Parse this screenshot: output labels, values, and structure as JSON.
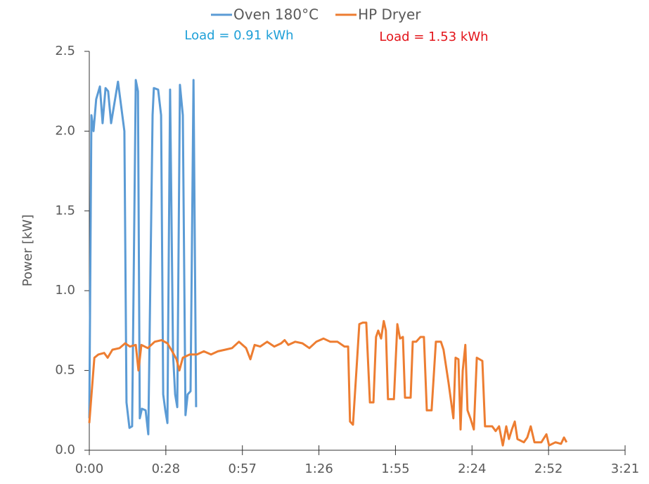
{
  "chart_data": {
    "type": "line",
    "y_label": "Power [kW]",
    "annotations": [
      {
        "text": "Load = 0.91 kWh",
        "color": "#1fa0d8"
      },
      {
        "text": "Load = 1.53 kWh",
        "color": "#e3151b"
      }
    ],
    "legend": "top",
    "xlim": [
      0,
      201.6
    ],
    "xticks": [
      {
        "value": 0,
        "label": "0:00"
      },
      {
        "value": 28.8,
        "label": "0:28"
      },
      {
        "value": 57.6,
        "label": "0:57"
      },
      {
        "value": 86.4,
        "label": "1:26"
      },
      {
        "value": 115.2,
        "label": "1:55"
      },
      {
        "value": 144,
        "label": "2:24"
      },
      {
        "value": 172.8,
        "label": "2:52"
      },
      {
        "value": 201.6,
        "label": "3:21"
      }
    ],
    "ylim": [
      0,
      2.5
    ],
    "yticks": [
      {
        "value": 0,
        "label": "0.0"
      },
      0.5,
      {
        "value": 1,
        "label": "1.0"
      },
      1.5,
      {
        "value": 2,
        "label": "2.0"
      },
      2.5
    ],
    "grid": false,
    "series": [
      {
        "name": "Oven 180°C",
        "color": "#5b9bd5",
        "x": [
          0,
          0.8,
          1.6,
          2.6,
          4.0,
          5.0,
          6.1,
          7.1,
          8.2,
          10.8,
          13.2,
          14.0,
          15.1,
          16.1,
          17.5,
          18.3,
          19.0,
          19.8,
          21.2,
          22.2,
          23.8,
          24.3,
          25.9,
          27.0,
          27.8,
          28.6,
          29.4,
          30.4,
          31.5,
          32.3,
          33.1,
          34.1,
          35.2,
          36.2,
          37.0,
          38.1,
          39.2,
          40.2
        ],
        "values": [
          0.2,
          2.1,
          2.0,
          2.2,
          2.28,
          2.05,
          2.27,
          2.25,
          2.05,
          2.31,
          2.0,
          0.3,
          0.14,
          0.15,
          2.32,
          2.25,
          0.2,
          0.26,
          0.25,
          0.1,
          2.1,
          2.27,
          2.26,
          2.1,
          0.35,
          0.25,
          0.17,
          2.26,
          0.6,
          0.35,
          0.27,
          2.29,
          2.1,
          0.22,
          0.35,
          0.37,
          2.32,
          0.27
        ]
      },
      {
        "name": "HP Dryer",
        "color": "#ed7d31",
        "x": [
          0,
          1.9,
          3.4,
          5.6,
          6.9,
          8.7,
          11.4,
          13.5,
          15.3,
          17.5,
          18.5,
          19.6,
          22.0,
          24.6,
          27.2,
          29.4,
          31.2,
          32.8,
          33.9,
          35.2,
          37.8,
          40.5,
          43.1,
          45.8,
          48.4,
          51.1,
          53.7,
          56.3,
          59.0,
          60.6,
          62.2,
          64.3,
          66.9,
          69.6,
          72.2,
          73.5,
          74.9,
          77.5,
          80.2,
          82.8,
          85.4,
          88.1,
          90.7,
          93.4,
          96.0,
          97.4,
          98.1,
          99.2,
          100.5,
          101.6,
          102.9,
          104.2,
          105.6,
          106.9,
          107.9,
          108.7,
          109.8,
          110.8,
          111.6,
          112.4,
          114.6,
          115.9,
          116.9,
          118.0,
          118.8,
          120.9,
          121.7,
          123.0,
          124.6,
          125.9,
          127.0,
          128.8,
          130.4,
          132.3,
          133.3,
          135.2,
          137.0,
          137.8,
          138.9,
          139.7,
          140.5,
          141.5,
          142.3,
          143.4,
          144.7,
          145.8,
          147.9,
          148.9,
          151.6,
          152.9,
          154.2,
          155.6,
          156.9,
          157.9,
          159.0,
          160.1,
          161.1,
          163.5,
          164.8,
          166.1,
          167.5,
          170.1,
          172.0,
          173.0,
          175.4,
          177.5,
          178.6,
          179.6
        ],
        "values": [
          0.17,
          0.58,
          0.6,
          0.61,
          0.58,
          0.63,
          0.64,
          0.67,
          0.65,
          0.66,
          0.5,
          0.66,
          0.64,
          0.68,
          0.69,
          0.67,
          0.62,
          0.57,
          0.5,
          0.58,
          0.6,
          0.6,
          0.62,
          0.6,
          0.62,
          0.63,
          0.64,
          0.68,
          0.64,
          0.57,
          0.66,
          0.65,
          0.68,
          0.65,
          0.67,
          0.69,
          0.66,
          0.68,
          0.67,
          0.64,
          0.68,
          0.7,
          0.68,
          0.68,
          0.65,
          0.65,
          0.18,
          0.16,
          0.5,
          0.79,
          0.8,
          0.8,
          0.3,
          0.3,
          0.71,
          0.75,
          0.7,
          0.81,
          0.75,
          0.32,
          0.32,
          0.79,
          0.7,
          0.71,
          0.33,
          0.33,
          0.68,
          0.68,
          0.71,
          0.71,
          0.25,
          0.25,
          0.68,
          0.68,
          0.63,
          0.42,
          0.2,
          0.58,
          0.57,
          0.13,
          0.5,
          0.66,
          0.25,
          0.2,
          0.13,
          0.58,
          0.56,
          0.15,
          0.15,
          0.12,
          0.15,
          0.03,
          0.15,
          0.07,
          0.13,
          0.18,
          0.07,
          0.05,
          0.08,
          0.15,
          0.05,
          0.05,
          0.1,
          0.03,
          0.05,
          0.04,
          0.08,
          0.05
        ]
      }
    ]
  }
}
